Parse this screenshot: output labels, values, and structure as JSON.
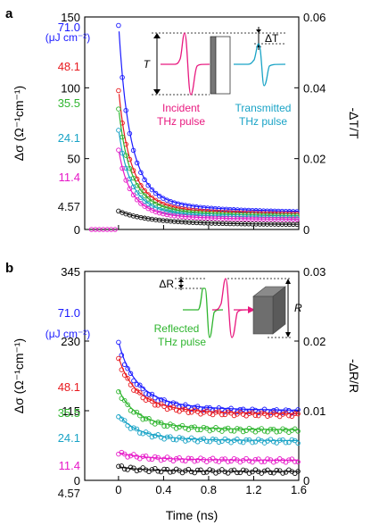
{
  "chart_data": [
    {
      "panel": "a",
      "type": "scatter",
      "xlim": [
        -0.3,
        1.6
      ],
      "ylim": [
        0,
        150
      ],
      "y2lim": [
        0,
        0.06
      ],
      "ylabel": "Δσ (Ω⁻¹cm⁻¹)",
      "y2label": "-ΔT/T",
      "xticks": [
        "0",
        "0.4",
        "0.8",
        "1.2",
        "1.6"
      ],
      "yticks": [
        0,
        50,
        100,
        150
      ],
      "y2ticks": [
        "0",
        "0.02",
        "0.04",
        "0.06"
      ],
      "fluence_unit": "(μJ cm⁻²)",
      "series": [
        {
          "name": "71.0",
          "color": "#1a1aff",
          "a0": 144,
          "plateau": 10,
          "tau": 0.12
        },
        {
          "name": "48.1",
          "color": "#e8191e",
          "a0": 98,
          "plateau": 9,
          "tau": 0.13
        },
        {
          "name": "35.5",
          "color": "#2fb52f",
          "a0": 85,
          "plateau": 8,
          "tau": 0.13
        },
        {
          "name": "24.1",
          "color": "#19a3c6",
          "a0": 70,
          "plateau": 7,
          "tau": 0.13
        },
        {
          "name": "11.4",
          "color": "#e619c8",
          "a0": 56,
          "plateau": 6,
          "tau": 0.13
        },
        {
          "name": "4.57",
          "color": "#111111",
          "a0": 13,
          "plateau": 3,
          "tau": 0.35
        }
      ],
      "inset": {
        "incident": "Incident",
        "incident2": "THz pulse",
        "transmitted": "Transmitted",
        "transmitted2": "THz pulse",
        "T": "T",
        "dT": "ΔT"
      }
    },
    {
      "panel": "b",
      "type": "scatter",
      "xlim": [
        -0.3,
        1.6
      ],
      "ylim": [
        0,
        345
      ],
      "y2lim": [
        0,
        0.03
      ],
      "xlabel": "Time (ns)",
      "ylabel": "Δσ (Ω⁻¹cm⁻¹)",
      "y2label": "-ΔR/R",
      "xticks": [
        "0",
        "0.4",
        "0.8",
        "1.2",
        "1.6"
      ],
      "yticks": [
        0,
        115,
        230,
        345
      ],
      "y2ticks": [
        "0",
        "0.01",
        "0.02",
        "0.03"
      ],
      "fluence_unit": "(μJ cm⁻²)",
      "series": [
        {
          "name": "71.0",
          "color": "#1a1aff",
          "a0": 225,
          "plateau": 110,
          "tau": 0.2
        },
        {
          "name": "48.1",
          "color": "#e8191e",
          "a0": 200,
          "plateau": 105,
          "tau": 0.2
        },
        {
          "name": "35.5",
          "color": "#2fb52f",
          "a0": 148,
          "plateau": 80,
          "tau": 0.2
        },
        {
          "name": "24.1",
          "color": "#19a3c6",
          "a0": 108,
          "plateau": 63,
          "tau": 0.2
        },
        {
          "name": "11.4",
          "color": "#e619c8",
          "a0": 45,
          "plateau": 32,
          "tau": 0.3
        },
        {
          "name": "4.57",
          "color": "#111111",
          "a0": 22,
          "plateau": 14,
          "tau": 0.3
        }
      ],
      "inset": {
        "reflected": "Reflected",
        "reflected2": "THz pulse",
        "R": "R",
        "dR": "ΔR"
      }
    }
  ],
  "panel_labels": [
    "a",
    "b"
  ]
}
